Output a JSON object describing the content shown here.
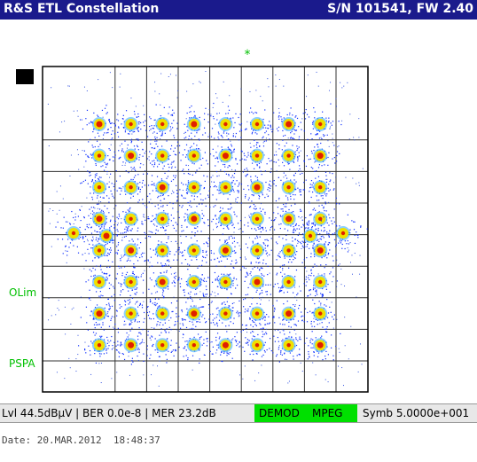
{
  "header": {
    "title": "R&S ETL Constellation",
    "info": "S/N 101541, FW 2.40"
  },
  "marker": "*",
  "side_labels": [
    "OLim",
    "PSPA"
  ],
  "status": {
    "measurements": "Lvl 44.5dBµV | BER 0.0e-8 | MER 23.2dB",
    "demod": "DEMOD",
    "mpeg": "MPEG",
    "symbol_rate": "Symb 5.0000e+001"
  },
  "footer": {
    "date": "Date: 20.MAR.2012  18:48:37"
  }
}
